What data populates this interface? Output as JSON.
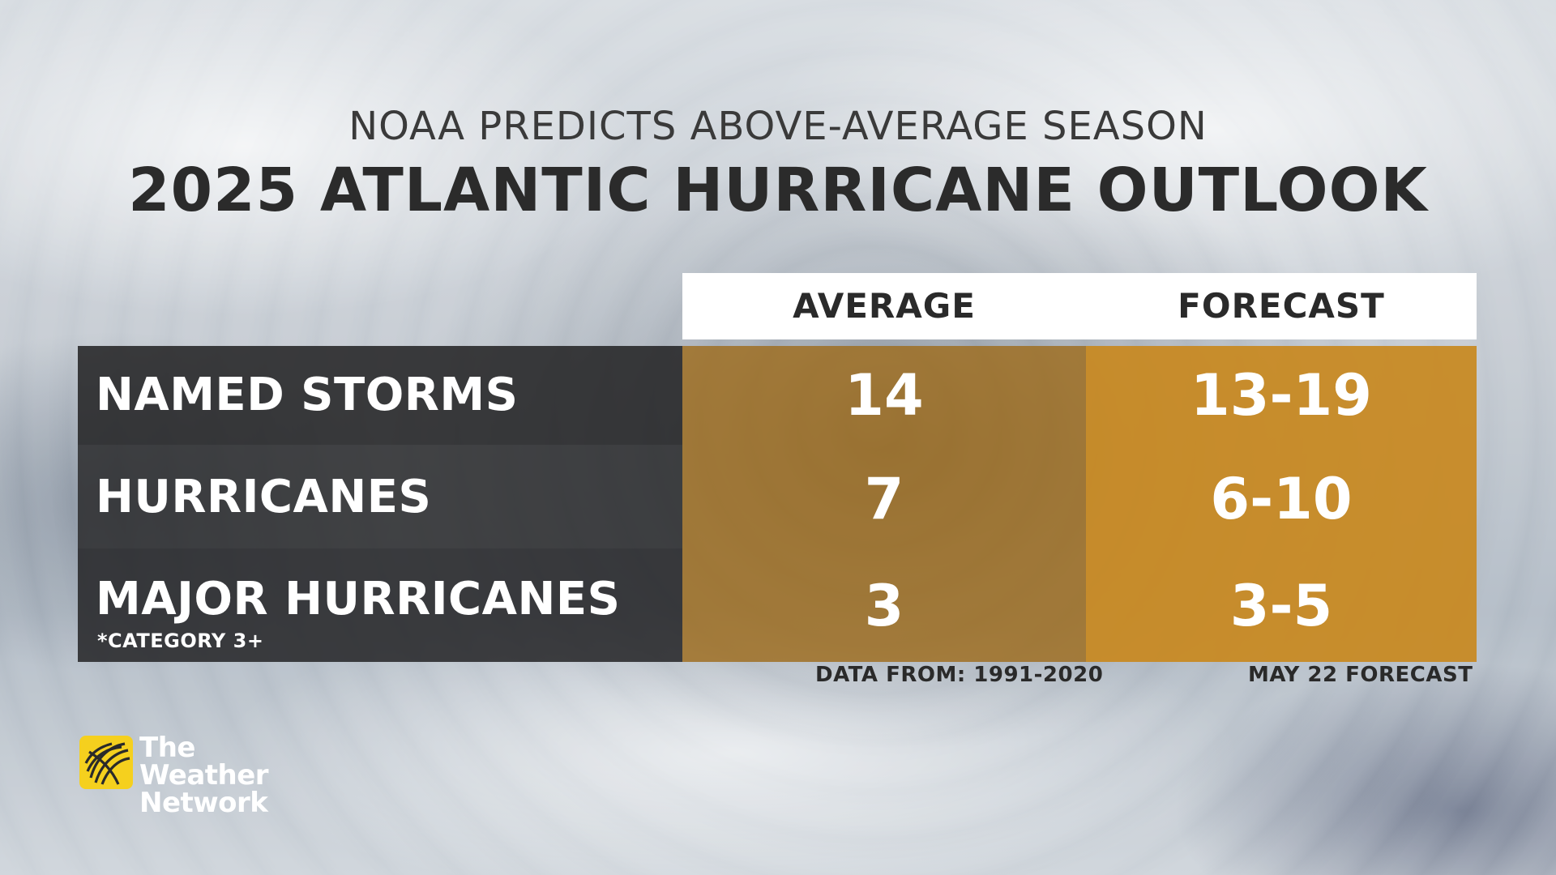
{
  "subtitle": "NOAA PREDICTS ABOVE-AVERAGE SEASON",
  "title": "2025 ATLANTIC HURRICANE OUTLOOK",
  "chart_data": {
    "type": "table",
    "columns": [
      "AVERAGE",
      "FORECAST"
    ],
    "rows": [
      {
        "label": "NAMED STORMS",
        "note": "",
        "average": "14",
        "forecast": "13-19"
      },
      {
        "label": "HURRICANES",
        "note": "",
        "average": "7",
        "forecast": "6-10"
      },
      {
        "label": "MAJOR HURRICANES",
        "note": "*CATEGORY 3+",
        "average": "3",
        "forecast": "3-5"
      }
    ],
    "footnotes": {
      "average": "DATA FROM: 1991-2020",
      "forecast": "MAY 22 FORECAST"
    }
  },
  "brand": {
    "line1": "The Weather",
    "line2": "Network",
    "logo_icon": "globe-icon",
    "color": "#f5d01e"
  },
  "colors": {
    "label_bg": "#262628",
    "average_bg": "#9e6e20",
    "forecast_bg": "#c88920",
    "header_bg": "#ffffff"
  }
}
